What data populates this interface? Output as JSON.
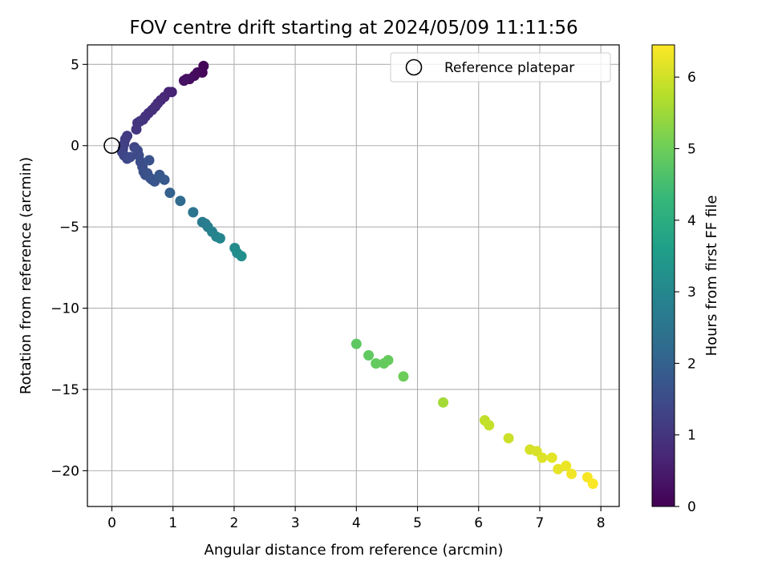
{
  "chart_data": {
    "type": "scatter",
    "title": "FOV centre drift starting at 2024/05/09 11:11:56",
    "xlabel": "Angular distance from reference (arcmin)",
    "ylabel": "Rotation from reference (arcmin)",
    "xlim": [
      -0.4,
      8.3
    ],
    "ylim": [
      -22.2,
      6.2
    ],
    "xticks": [
      0,
      1,
      2,
      3,
      4,
      5,
      6,
      7,
      8
    ],
    "yticks": [
      5,
      0,
      -5,
      -10,
      -15,
      -20
    ],
    "grid": true,
    "legend": {
      "placement": "top-right",
      "entries": [
        "Reference platepar"
      ]
    },
    "reference_point": {
      "x": 0,
      "y": 0,
      "label": "Reference platepar"
    },
    "colorbar": {
      "label": "Hours from first FF file",
      "colormap": "viridis",
      "min": 0,
      "max": 6.45,
      "ticks": [
        0,
        1,
        2,
        3,
        4,
        5,
        6
      ],
      "stops": [
        "#440154",
        "#482878",
        "#3e4989",
        "#31688e",
        "#26828e",
        "#1f9e89",
        "#35b779",
        "#6ece58",
        "#b5de2b",
        "#fde725"
      ]
    },
    "series": [
      {
        "x": [
          1.5,
          1.48,
          1.4,
          1.35,
          1.27,
          1.22,
          1.18,
          0.98,
          0.93,
          0.86,
          0.8,
          0.75,
          0.71,
          0.66,
          0.6,
          0.55,
          0.51,
          0.46,
          0.42,
          0.4,
          0.25,
          0.22,
          0.2,
          0.18,
          0.17,
          0.2,
          0.25,
          0.3,
          0.37,
          0.42,
          0.44,
          0.47,
          0.5,
          0.52,
          0.55,
          0.58,
          0.61,
          0.63,
          0.66,
          0.7,
          0.78,
          0.86,
          0.95,
          1.12,
          1.33,
          1.48,
          1.53,
          1.57,
          1.64,
          1.71,
          1.77,
          2.01,
          2.05,
          2.12,
          4.0,
          4.2,
          4.32,
          4.45,
          4.52,
          4.77,
          5.42,
          6.1,
          6.17,
          6.49,
          6.84,
          6.95,
          7.04,
          7.2,
          7.3,
          7.43,
          7.52,
          7.78,
          7.87
        ],
        "y": [
          4.9,
          4.5,
          4.5,
          4.3,
          4.1,
          4.1,
          4.0,
          3.3,
          3.3,
          3.0,
          2.8,
          2.6,
          2.4,
          2.2,
          2.0,
          1.8,
          1.6,
          1.5,
          1.4,
          1.0,
          0.6,
          0.4,
          0.1,
          -0.2,
          -0.4,
          -0.6,
          -0.8,
          -0.7,
          -0.1,
          -0.3,
          -0.6,
          -1.0,
          -1.3,
          -1.6,
          -1.8,
          -1.7,
          -0.9,
          -2.0,
          -2.1,
          -2.2,
          -1.8,
          -2.1,
          -2.9,
          -3.4,
          -4.1,
          -4.7,
          -4.8,
          -5.0,
          -5.3,
          -5.6,
          -5.7,
          -6.3,
          -6.6,
          -6.8,
          -12.2,
          -12.9,
          -13.4,
          -13.4,
          -13.2,
          -14.2,
          -15.8,
          -16.9,
          -17.2,
          -18.0,
          -18.7,
          -18.8,
          -19.2,
          -19.2,
          -19.9,
          -19.7,
          -20.2,
          -20.4,
          -20.8
        ],
        "c": [
          0.05,
          0.1,
          0.15,
          0.18,
          0.22,
          0.26,
          0.3,
          0.6,
          0.65,
          0.7,
          0.75,
          0.8,
          0.85,
          0.88,
          0.9,
          0.92,
          0.95,
          0.97,
          1.0,
          1.03,
          1.1,
          1.15,
          1.2,
          1.25,
          1.3,
          1.35,
          1.4,
          1.45,
          1.4,
          1.45,
          1.5,
          1.52,
          1.55,
          1.58,
          1.6,
          1.62,
          1.65,
          1.68,
          1.7,
          1.72,
          1.75,
          1.8,
          2.0,
          2.2,
          2.5,
          2.65,
          2.7,
          2.75,
          2.85,
          2.9,
          2.95,
          3.1,
          3.15,
          3.2,
          4.8,
          4.85,
          4.88,
          4.9,
          4.92,
          5.0,
          5.55,
          5.85,
          5.88,
          5.95,
          6.05,
          6.08,
          6.12,
          6.18,
          6.22,
          6.28,
          6.32,
          6.38,
          6.42
        ]
      }
    ]
  }
}
